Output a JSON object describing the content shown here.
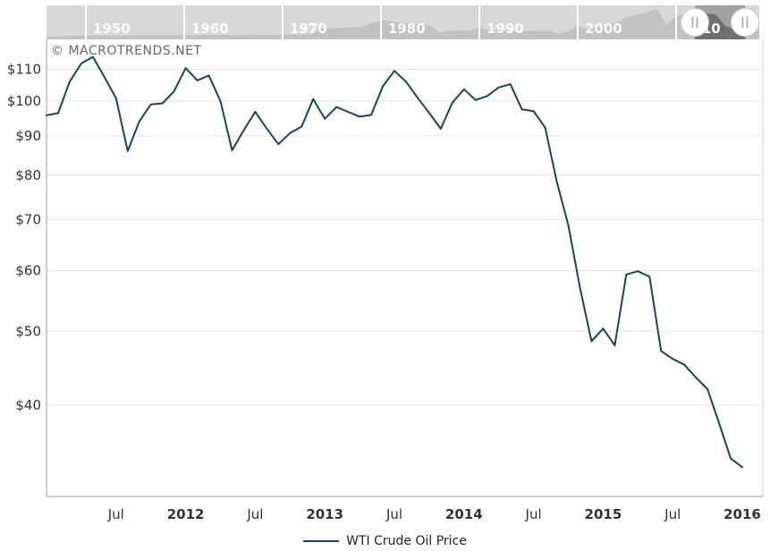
{
  "watermark": {
    "text": "© MACROTRENDS.NET"
  },
  "legend": {
    "label": "WTI Crude Oil Price"
  },
  "colors": {
    "line": "#17455a",
    "grid": "#e3e3e3",
    "axis_border": "#999999",
    "axis_border_right": "#d4d4d4",
    "tick_label": "#333333",
    "watermark": "#666666",
    "nav_bg": "#d8d8d8",
    "nav_area": "#c2c2c2",
    "nav_selected_bg": "#a2a2a2",
    "nav_selected_area": "#6f6f6f",
    "nav_divider": "#ffffff",
    "nav_label": "#fafafa",
    "handle_fill": "#ffffff",
    "handle_border": "#cccccc",
    "handle_grip": "#a5a5a5"
  },
  "navigator": {
    "decade_labels": [
      "1950",
      "1960",
      "1970",
      "1980",
      "1990",
      "2000",
      "2010"
    ],
    "handle_glyph": "||",
    "history": {
      "years": [
        1946,
        1948,
        1950,
        1954,
        1958,
        1962,
        1966,
        1970,
        1973,
        1974,
        1976,
        1978,
        1980,
        1982,
        1984,
        1985,
        1986,
        1987,
        1989,
        1990,
        1991,
        1993,
        1995,
        1997,
        1998,
        1999,
        2000,
        2001,
        2002,
        2004,
        2005,
        2006,
        2007,
        2008,
        2009,
        2010,
        2011,
        2012,
        2013,
        2014,
        2015,
        2016,
        2017,
        2018,
        2018.5
      ],
      "levels": [
        0.08,
        0.1,
        0.11,
        0.12,
        0.12,
        0.13,
        0.13,
        0.14,
        0.16,
        0.33,
        0.36,
        0.38,
        0.6,
        0.52,
        0.46,
        0.42,
        0.22,
        0.28,
        0.26,
        0.38,
        0.28,
        0.25,
        0.26,
        0.28,
        0.17,
        0.24,
        0.42,
        0.32,
        0.36,
        0.52,
        0.68,
        0.78,
        0.82,
        0.98,
        0.45,
        0.72,
        0.8,
        0.78,
        0.8,
        0.78,
        0.42,
        0.3,
        0.38,
        0.44,
        0.4
      ]
    }
  },
  "chart_data": {
    "type": "line",
    "title": "WTI Crude Oil Price",
    "xlabel": "",
    "ylabel": "",
    "y_scale": "log",
    "ylim": [
      30.4,
      120.4
    ],
    "grid": "horizontal",
    "legend_position": "bottom",
    "y_ticks": [
      {
        "label": "$110",
        "value": 110
      },
      {
        "label": "$100",
        "value": 100
      },
      {
        "label": "$90",
        "value": 90
      },
      {
        "label": "$80",
        "value": 80
      },
      {
        "label": "$70",
        "value": 70
      },
      {
        "label": "$60",
        "value": 60
      },
      {
        "label": "$50",
        "value": 50
      },
      {
        "label": "$40",
        "value": 40
      }
    ],
    "x_ticks": [
      {
        "label": "Jul",
        "month_index": 6,
        "bold": false
      },
      {
        "label": "2012",
        "month_index": 12,
        "bold": true
      },
      {
        "label": "Jul",
        "month_index": 18,
        "bold": false
      },
      {
        "label": "2013",
        "month_index": 24,
        "bold": true
      },
      {
        "label": "Jul",
        "month_index": 30,
        "bold": false
      },
      {
        "label": "2014",
        "month_index": 36,
        "bold": true
      },
      {
        "label": "Jul",
        "month_index": 42,
        "bold": false
      },
      {
        "label": "2015",
        "month_index": 48,
        "bold": true
      },
      {
        "label": "Jul",
        "month_index": 54,
        "bold": false
      },
      {
        "label": "2016",
        "month_index": 60,
        "bold": true
      }
    ],
    "series": [
      {
        "name": "WTI Crude Oil Price",
        "color": "#17455a",
        "months": [
          "2011-01",
          "2011-02",
          "2011-03",
          "2011-04",
          "2011-05",
          "2011-06",
          "2011-07",
          "2011-08",
          "2011-09",
          "2011-10",
          "2011-11",
          "2011-12",
          "2012-01",
          "2012-02",
          "2012-03",
          "2012-04",
          "2012-05",
          "2012-06",
          "2012-07",
          "2012-08",
          "2012-09",
          "2012-10",
          "2012-11",
          "2012-12",
          "2013-01",
          "2013-02",
          "2013-03",
          "2013-04",
          "2013-05",
          "2013-06",
          "2013-07",
          "2013-08",
          "2013-09",
          "2013-10",
          "2013-11",
          "2013-12",
          "2014-01",
          "2014-02",
          "2014-03",
          "2014-04",
          "2014-05",
          "2014-06",
          "2014-07",
          "2014-08",
          "2014-09",
          "2014-10",
          "2014-11",
          "2014-12",
          "2015-01",
          "2015-02",
          "2015-03",
          "2015-04",
          "2015-05",
          "2015-06",
          "2015-07",
          "2015-08",
          "2015-09",
          "2015-10",
          "2015-11",
          "2015-12",
          "2016-01"
        ],
        "values": [
          95.8,
          96.4,
          106.0,
          112.0,
          114.2,
          107.5,
          100.8,
          86.0,
          94.0,
          99.0,
          99.3,
          103.0,
          110.4,
          106.4,
          108.0,
          100.0,
          86.2,
          91.5,
          96.8,
          92.0,
          87.8,
          90.8,
          92.6,
          100.6,
          94.8,
          98.2,
          96.8,
          95.4,
          95.9,
          104.5,
          109.5,
          106.0,
          101.0,
          96.5,
          92.0,
          99.5,
          103.6,
          100.3,
          101.5,
          104.2,
          105.2,
          97.5,
          97.0,
          92.3,
          78.5,
          68.8,
          57.0,
          48.5,
          50.4,
          47.9,
          59.3,
          59.9,
          58.9,
          47.1,
          46.0,
          45.2,
          43.5,
          42.0,
          37.9,
          34.1,
          33.2
        ]
      }
    ]
  }
}
